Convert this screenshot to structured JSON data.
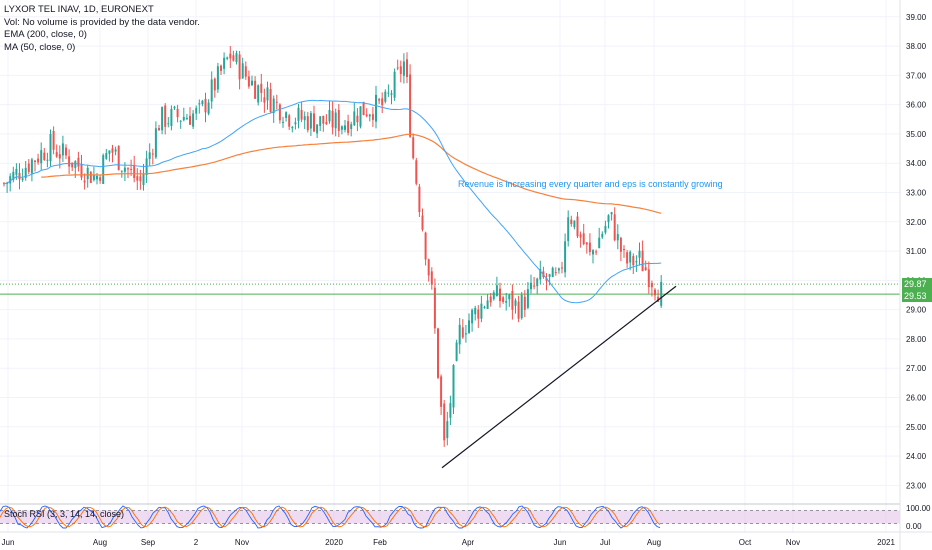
{
  "legend": {
    "title": "LYXOR TEL INAV, 1D, EURONEXT",
    "vol": "Vol: No volume is provided by the data vendor.",
    "ema": "EMA (200, close, 0)",
    "ma": "MA (50, close, 0)"
  },
  "price_tags": {
    "upper": "29.87",
    "lower": "29.53"
  },
  "chart_data": [
    {
      "type": "candlestick",
      "title": "LYXOR TEL INAV, 1D, EURONEXT",
      "ylim": [
        22.5,
        39.3
      ],
      "y_ticks": [
        "39.00",
        "38.00",
        "37.00",
        "36.00",
        "35.00",
        "34.00",
        "33.00",
        "32.00",
        "31.00",
        "30.00",
        "29.00",
        "28.00",
        "27.00",
        "26.00",
        "25.00",
        "24.00",
        "23.00"
      ],
      "x_ticks": [
        "Jun",
        "Aug",
        "Sep",
        "2",
        "Nov",
        "2020",
        "Feb",
        "Apr",
        "Jun",
        "Jul",
        "Aug",
        "Oct",
        "Nov",
        "2021"
      ],
      "horizontal_levels": [
        29.87,
        29.53
      ],
      "annotation": "Revenue is increasing every quarter and eps is constantly growing",
      "trendline": {
        "from": [
          "Mar",
          23.6
        ],
        "to": [
          "Aug",
          29.8
        ]
      },
      "price_anchors": [
        [
          "Jun",
          33.3
        ],
        [
          "Jul",
          34.6
        ],
        [
          "Aug",
          33.5
        ],
        [
          "Aug",
          34.5
        ],
        [
          "Sep",
          33.3
        ],
        [
          "Sep",
          35.5
        ],
        [
          "2",
          35.7
        ],
        [
          "2",
          37.7
        ],
        [
          "Nov",
          36.8
        ],
        [
          "Nov",
          35.6
        ],
        [
          "Dec",
          35.4
        ],
        [
          "2020",
          35.4
        ],
        [
          "Jan",
          35.8
        ],
        [
          "Feb",
          36.0
        ],
        [
          "Feb",
          37.5
        ],
        [
          "Feb",
          34.5
        ],
        [
          "Mar",
          32.5
        ],
        [
          "Mar",
          29.5
        ],
        [
          "Mar",
          24.3
        ],
        [
          "Apr",
          28.3
        ],
        [
          "Apr",
          29.5
        ],
        [
          "May",
          29.1
        ],
        [
          "May",
          30.0
        ],
        [
          "Jun",
          30.0
        ],
        [
          "Jun",
          32.4
        ],
        [
          "Jul",
          30.8
        ],
        [
          "Jul",
          32.2
        ],
        [
          "Jul",
          30.6
        ],
        [
          "Aug",
          30.7
        ],
        [
          "Aug",
          29.6
        ]
      ],
      "series": [
        {
          "name": "EMA (200, close, 0)",
          "color": "#f7813c"
        },
        {
          "name": "MA (50, close, 0)",
          "color": "#42a5f5"
        }
      ]
    },
    {
      "type": "line",
      "title": "Stoch RSI (3, 3, 14, 14, close)",
      "ylim": [
        0,
        100
      ],
      "y_ticks": [
        "100.00",
        "0.00"
      ],
      "levels": [
        80,
        20
      ],
      "series": [
        {
          "name": "%K",
          "color": "#2962ff"
        },
        {
          "name": "%D",
          "color": "#ff6d00"
        }
      ]
    }
  ],
  "colors": {
    "up": "#26a69a",
    "down": "#ef5350",
    "ema": "#f7813c",
    "ma": "#42a5f5",
    "annotation": "#2196f3",
    "level": "#4caf50",
    "stoch_band": "#e1bee7"
  }
}
